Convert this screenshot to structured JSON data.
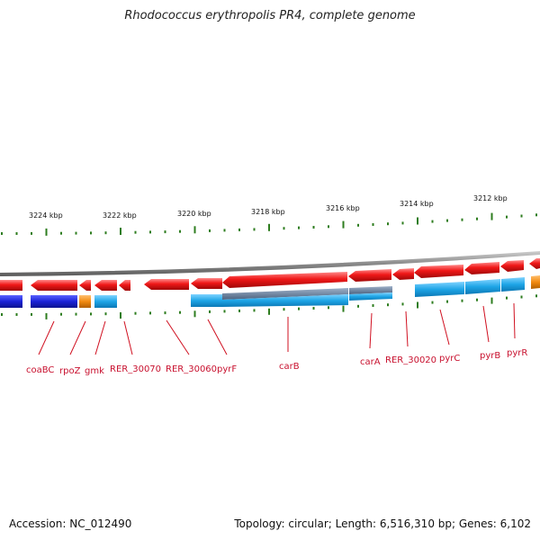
{
  "title": "Rhodococcus erythropolis PR4, complete genome",
  "footer": {
    "accession": "Accession: NC_012490",
    "summary": "Topology: circular; Length: 6,516,310 bp; Genes: 6,102"
  },
  "colors": {
    "forward_gene": "#e8121b",
    "reverse_gene_dark": "#1a22d6",
    "reverse_gene_light": "#1ea5e6",
    "orange_gene": "#f28a10",
    "backbone": "#7f7f7f",
    "tick": "#2e7d1f",
    "label": "#c8102e"
  },
  "kbp_labels": [
    "3224 kbp",
    "3222 kbp",
    "3220 kbp",
    "3218 kbp",
    "3216 kbp",
    "3214 kbp",
    "3212 kbp"
  ],
  "gene_labels": [
    "coaBC",
    "rpoZ",
    "gmk",
    "RER_30070",
    "RER_30060",
    "pyrF",
    "carB",
    "carA",
    "RER_30020",
    "pyrC",
    "pyrB",
    "pyrR"
  ]
}
